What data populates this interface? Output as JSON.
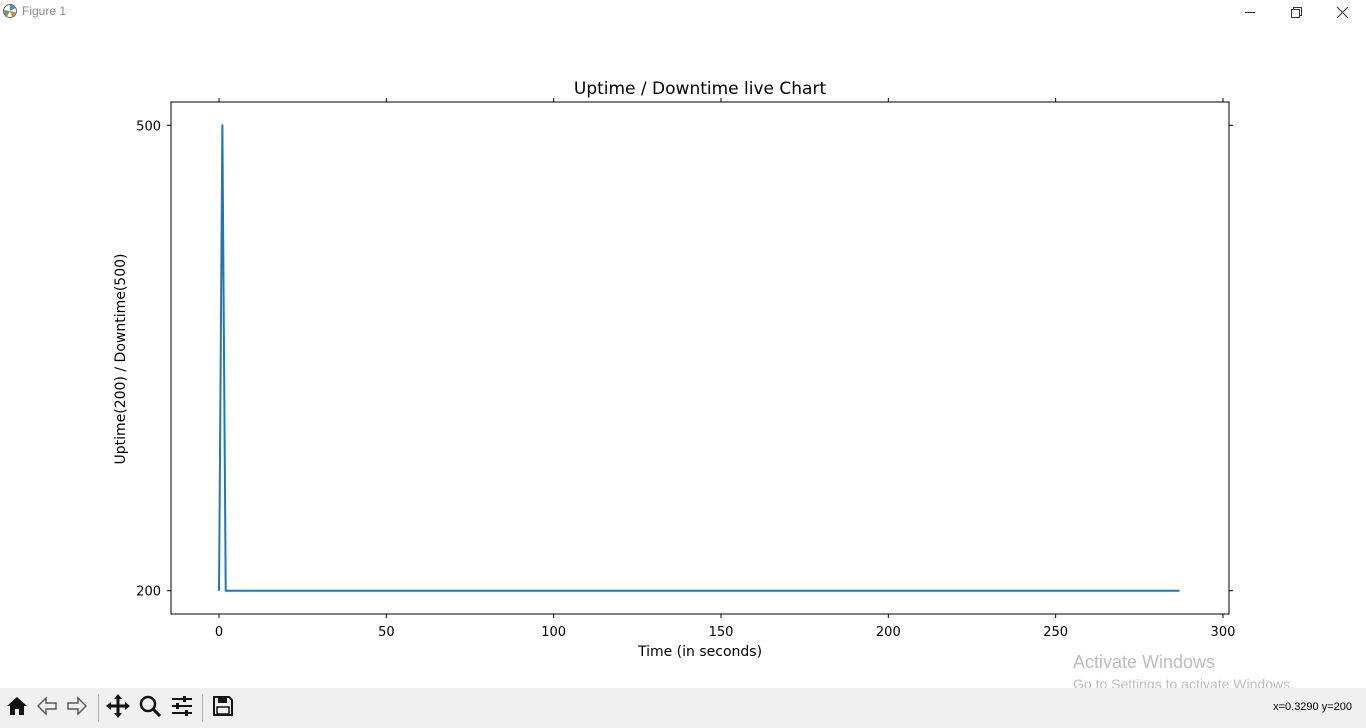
{
  "window": {
    "title": "Figure 1",
    "icons": {
      "app": "matplotlib-icon",
      "minimize": "minimize-icon",
      "maximize": "restore-icon",
      "close": "close-icon"
    }
  },
  "chart_data": {
    "type": "line",
    "title": "Uptime / Downtime live Chart",
    "xlabel": "Time (in seconds)",
    "ylabel": "Uptime(200) / Downtime(500)",
    "xlim": [
      -14.35,
      301.8
    ],
    "ylim": [
      185,
      515
    ],
    "xticks": [
      0,
      50,
      100,
      150,
      200,
      250,
      300
    ],
    "yticks": [
      200,
      500
    ],
    "grid": false,
    "color": "#1f77b4",
    "series": [
      {
        "x": [
          0,
          1,
          2,
          287
        ],
        "values": [
          200,
          500,
          200,
          200
        ]
      }
    ]
  },
  "toolbar": {
    "buttons": [
      {
        "name": "home-icon"
      },
      {
        "name": "back-icon"
      },
      {
        "name": "forward-icon"
      },
      {
        "name": "pan-icon"
      },
      {
        "name": "zoom-icon"
      },
      {
        "name": "configure-subplots-icon"
      },
      {
        "name": "save-icon"
      }
    ],
    "coords": "x=0.3290 y=200"
  },
  "watermark": {
    "line1": "Activate Windows",
    "line2": "Go to Settings to activate Windows."
  }
}
